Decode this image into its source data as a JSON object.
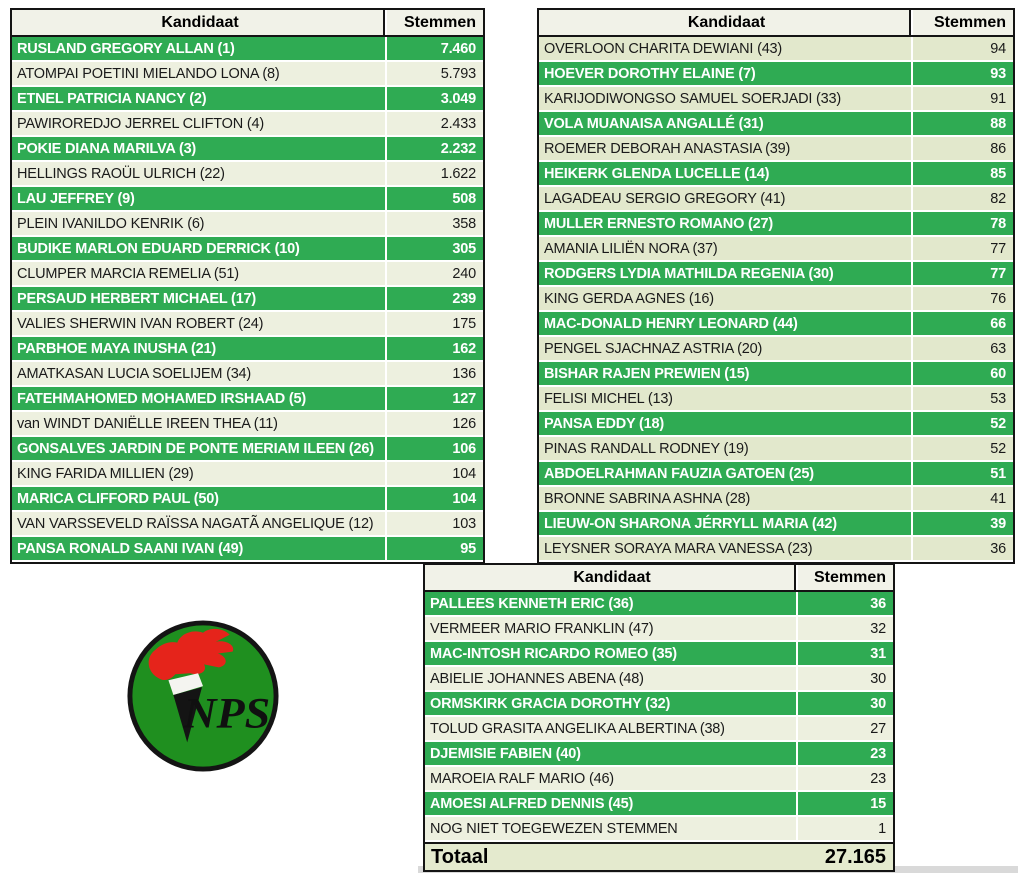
{
  "colors": {
    "row-green": "#2FAB53",
    "light-left": "#EDF0DF",
    "light-right": "#E2E8CC",
    "header-bg": "#F1F2E8",
    "total-bg": "#E4EACE",
    "border-black": "#141414",
    "logo-green": "#1F8F1F",
    "logo-red": "#E5241B",
    "shadow-gray": "#D9D9D9"
  },
  "tables": {
    "left": {
      "headers": [
        "Kandidaat",
        "Stemmen"
      ],
      "rows": [
        {
          "name": "RUSLAND GREGORY ALLAN (1)",
          "votes": "7.460",
          "highlight": true
        },
        {
          "name": "ATOMPAI POETINI MIELANDO LONA (8)",
          "votes": "5.793",
          "highlight": false
        },
        {
          "name": "ETNEL PATRICIA NANCY (2)",
          "votes": "3.049",
          "highlight": true
        },
        {
          "name": "PAWIROREDJO JERREL CLIFTON (4)",
          "votes": "2.433",
          "highlight": false
        },
        {
          "name": "POKIE DIANA MARILVA (3)",
          "votes": "2.232",
          "highlight": true
        },
        {
          "name": "HELLINGS RAOÜL ULRICH (22)",
          "votes": "1.622",
          "highlight": false
        },
        {
          "name": "LAU JEFFREY (9)",
          "votes": "508",
          "highlight": true
        },
        {
          "name": "PLEIN IVANILDO KENRIK (6)",
          "votes": "358",
          "highlight": false
        },
        {
          "name": "BUDIKE MARLON EDUARD DERRICK (10)",
          "votes": "305",
          "highlight": true
        },
        {
          "name": "CLUMPER MARCIA REMELIA (51)",
          "votes": "240",
          "highlight": false
        },
        {
          "name": "PERSAUD HERBERT MICHAEL (17)",
          "votes": "239",
          "highlight": true
        },
        {
          "name": "VALIES SHERWIN IVAN ROBERT (24)",
          "votes": "175",
          "highlight": false
        },
        {
          "name": "PARBHOE MAYA INUSHA (21)",
          "votes": "162",
          "highlight": true
        },
        {
          "name": "AMATKASAN LUCIA SOELIJEM (34)",
          "votes": "136",
          "highlight": false
        },
        {
          "name": "FATEHMAHOMED MOHAMED IRSHAAD (5)",
          "votes": "127",
          "highlight": true
        },
        {
          "name": "van WINDT DANIËLLE IREEN THEA (11)",
          "votes": "126",
          "highlight": false
        },
        {
          "name": "GONSALVES JARDIN DE PONTE MERIAM ILEEN (26)",
          "votes": "106",
          "highlight": true
        },
        {
          "name": "KING FARIDA MILLIEN (29)",
          "votes": "104",
          "highlight": false
        },
        {
          "name": "MARICA CLIFFORD PAUL (50)",
          "votes": "104",
          "highlight": true
        },
        {
          "name": "VAN VARSSEVELD RAÏSSA NAGATÃ ANGELIQUE (12)",
          "votes": "103",
          "highlight": false
        },
        {
          "name": "PANSA RONALD SAANI IVAN (49)",
          "votes": "95",
          "highlight": true
        }
      ]
    },
    "right": {
      "headers": [
        "Kandidaat",
        "Stemmen"
      ],
      "rows": [
        {
          "name": "OVERLOON CHARITA DEWIANI (43)",
          "votes": "94",
          "highlight": false
        },
        {
          "name": "HOEVER DOROTHY ELAINE (7)",
          "votes": "93",
          "highlight": true
        },
        {
          "name": "KARIJODIWONGSO SAMUEL SOERJADI (33)",
          "votes": "91",
          "highlight": false
        },
        {
          "name": "VOLA MUANAISA ANGALLÉ (31)",
          "votes": "88",
          "highlight": true
        },
        {
          "name": "ROEMER DEBORAH ANASTASIA (39)",
          "votes": "86",
          "highlight": false
        },
        {
          "name": "HEIKERK GLENDA LUCELLE (14)",
          "votes": "85",
          "highlight": true
        },
        {
          "name": "LAGADEAU SERGIO GREGORY (41)",
          "votes": "82",
          "highlight": false
        },
        {
          "name": "MULLER ERNESTO ROMANO (27)",
          "votes": "78",
          "highlight": true
        },
        {
          "name": "AMANIA LILIËN NORA (37)",
          "votes": "77",
          "highlight": false
        },
        {
          "name": "RODGERS LYDIA MATHILDA REGENIA (30)",
          "votes": "77",
          "highlight": true
        },
        {
          "name": "KING GERDA AGNES (16)",
          "votes": "76",
          "highlight": false
        },
        {
          "name": "MAC-DONALD HENRY LEONARD (44)",
          "votes": "66",
          "highlight": true
        },
        {
          "name": "PENGEL SJACHNAZ ASTRIA (20)",
          "votes": "63",
          "highlight": false
        },
        {
          "name": "BISHAR RAJEN PREWIEN (15)",
          "votes": "60",
          "highlight": true
        },
        {
          "name": "FELISI MICHEL (13)",
          "votes": "53",
          "highlight": false
        },
        {
          "name": "PANSA EDDY (18)",
          "votes": "52",
          "highlight": true
        },
        {
          "name": "PINAS RANDALL RODNEY (19)",
          "votes": "52",
          "highlight": false
        },
        {
          "name": "ABDOELRAHMAN FAUZIA GATOEN (25)",
          "votes": "51",
          "highlight": true
        },
        {
          "name": "BRONNE SABRINA ASHNA (28)",
          "votes": "41",
          "highlight": false
        },
        {
          "name": "LIEUW-ON SHARONA JÉRRYLL MARIA (42)",
          "votes": "39",
          "highlight": true
        },
        {
          "name": "LEYSNER SORAYA MARA VANESSA (23)",
          "votes": "36",
          "highlight": false
        }
      ]
    },
    "bottom": {
      "headers": [
        "Kandidaat",
        "Stemmen"
      ],
      "rows": [
        {
          "name": "PALLEES KENNETH ERIC (36)",
          "votes": "36",
          "highlight": true
        },
        {
          "name": "VERMEER MARIO FRANKLIN (47)",
          "votes": "32",
          "highlight": false
        },
        {
          "name": "MAC-INTOSH RICARDO ROMEO (35)",
          "votes": "31",
          "highlight": true
        },
        {
          "name": "ABIELIE JOHANNES ABENA (48)",
          "votes": "30",
          "highlight": false
        },
        {
          "name": "ORMSKIRK GRACIA DOROTHY (32)",
          "votes": "30",
          "highlight": true
        },
        {
          "name": "TOLUD GRASITA ANGELIKA ALBERTINA (38)",
          "votes": "27",
          "highlight": false
        },
        {
          "name": "DJEMISIE FABIEN (40)",
          "votes": "23",
          "highlight": true
        },
        {
          "name": "MAROEIA RALF MARIO (46)",
          "votes": "23",
          "highlight": false
        },
        {
          "name": "AMOESI ALFRED DENNIS (45)",
          "votes": "15",
          "highlight": true
        },
        {
          "name": "NOG NIET TOEGEWEZEN STEMMEN",
          "votes": "1",
          "highlight": false
        }
      ],
      "total": {
        "label": "Totaal",
        "value": "27.165"
      }
    }
  },
  "logo": {
    "text": "NPS"
  }
}
